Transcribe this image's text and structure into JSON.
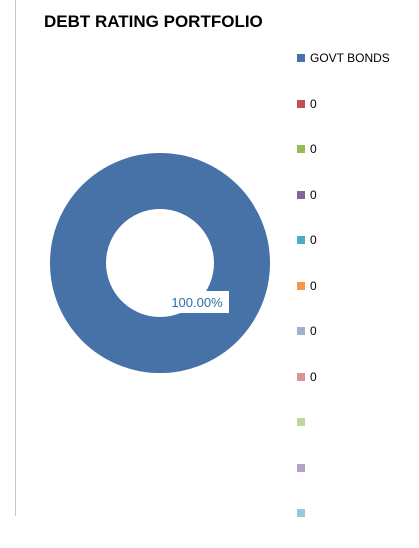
{
  "chart_data": {
    "type": "pie",
    "variant": "donut",
    "title": "DEBT RATING PORTFOLIO",
    "categories": [
      "GOVT BONDS",
      "0",
      "0",
      "0",
      "0",
      "0",
      "0",
      "0",
      "",
      "",
      ""
    ],
    "values": [
      100,
      0,
      0,
      0,
      0,
      0,
      0,
      0,
      0,
      0,
      0
    ],
    "colors": [
      "#4672a8",
      "#c0504d",
      "#9bbb59",
      "#8064a2",
      "#4bacc6",
      "#f79646",
      "#a0b2d3",
      "#d99594",
      "#c3d69b",
      "#b3a2c7",
      "#93cddd"
    ],
    "data_labels": [
      "100.00%"
    ],
    "legend": "right"
  }
}
